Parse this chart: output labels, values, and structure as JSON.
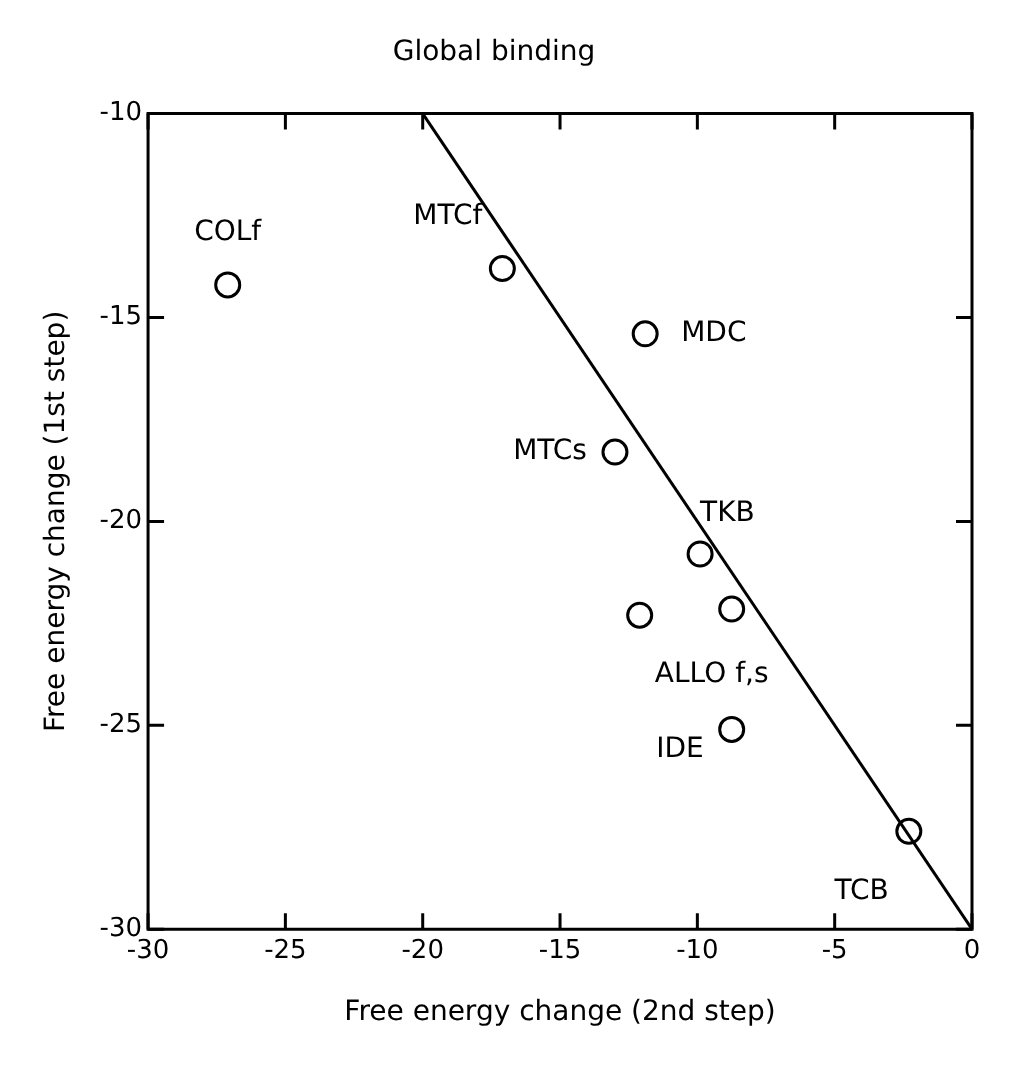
{
  "chart_data": {
    "type": "scatter",
    "title": "Global binding",
    "xlabel": "Free energy change (2nd step)",
    "ylabel": "Free energy change (1st step)",
    "xlim": [
      -30,
      0
    ],
    "xticks": [
      -30,
      -25,
      -20,
      -15,
      -10,
      -5,
      0
    ],
    "ylim": [
      -30,
      -10
    ],
    "yticks": [
      -30,
      -25,
      -20,
      -15,
      -10
    ],
    "grid": false,
    "legend": false,
    "series": [
      {
        "marker": "circle",
        "color": "#000000",
        "x": [
          -27.1,
          -17.1,
          -11.9,
          -13.0,
          -9.9,
          -12.1,
          -8.75,
          -8.75,
          -2.3
        ],
        "values": [
          -14.2,
          -13.8,
          -15.4,
          -18.3,
          -20.8,
          -22.3,
          -22.15,
          -25.1,
          -27.6
        ]
      },
      {
        "type": "line",
        "color": "#000000",
        "x": [
          -20,
          0
        ],
        "values": [
          -10,
          -30
        ]
      }
    ],
    "annotations": [
      {
        "text": "COLf",
        "x": -27.1,
        "y": -14.2
      },
      {
        "text": "MTCf",
        "x": -17.1,
        "y": -13.8
      },
      {
        "text": "MDC",
        "x": -11.9,
        "y": -15.4
      },
      {
        "text": "MTCs",
        "x": -13.0,
        "y": -18.3
      },
      {
        "text": "TKB",
        "x": -9.9,
        "y": -20.8
      },
      {
        "text": "ALLO f,s",
        "x": -12.1,
        "y": -22.3
      },
      {
        "text": "IDE",
        "x": -8.75,
        "y": -25.1
      },
      {
        "text": "TCB",
        "x": -2.3,
        "y": -27.6
      }
    ]
  }
}
